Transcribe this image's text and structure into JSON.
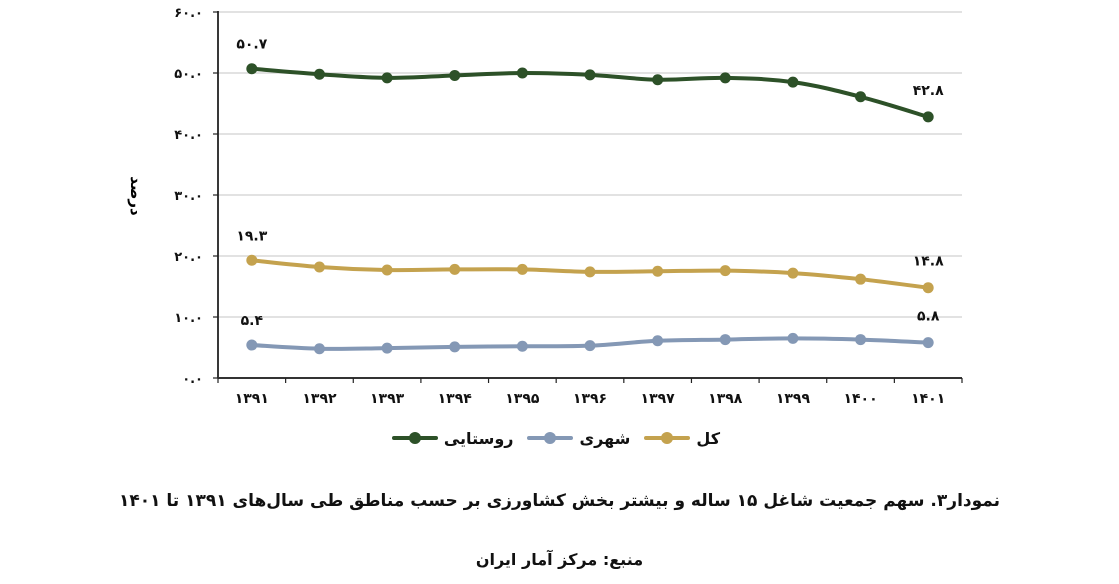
{
  "chart_data": {
    "type": "line",
    "title": "نمودار۳. سهم جمعیت شاغل ۱۵ ساله و بیشتر بخش کشاورزی بر حسب مناطق طی سال‌های ۱۳۹۱ تا ۱۴۰۱",
    "source": "منبع: مرکز آمار ایران",
    "xlabel": "",
    "ylabel": "درصد",
    "ylim": [
      0,
      60
    ],
    "yticks": [
      0,
      10,
      20,
      30,
      40,
      50,
      60
    ],
    "ytick_labels": [
      "۰.۰",
      "۱۰.۰",
      "۲۰.۰",
      "۳۰.۰",
      "۴۰.۰",
      "۵۰.۰",
      "۶۰.۰"
    ],
    "grid": true,
    "legend_position": "bottom",
    "categories": [
      "۱۳۹۱",
      "۱۳۹۲",
      "۱۳۹۳",
      "۱۳۹۴",
      "۱۳۹۵",
      "۱۳۹۶",
      "۱۳۹۷",
      "۱۳۹۸",
      "۱۳۹۹",
      "۱۴۰۰",
      "۱۴۰۱"
    ],
    "series": [
      {
        "name": "روستایی",
        "color": "#2d5128",
        "values": [
          50.7,
          49.8,
          49.2,
          49.6,
          50.0,
          49.7,
          48.9,
          49.2,
          48.5,
          46.1,
          42.8
        ],
        "labels": {
          "first": "۵۰.۷",
          "last": "۴۲.۸"
        }
      },
      {
        "name": "شهری",
        "color": "#8498b5",
        "values": [
          5.4,
          4.8,
          4.9,
          5.1,
          5.2,
          5.3,
          6.1,
          6.3,
          6.5,
          6.3,
          5.8
        ],
        "labels": {
          "first": "۵.۴",
          "last": "۵.۸"
        }
      },
      {
        "name": "کل",
        "color": "#c4a24e",
        "values": [
          19.3,
          18.2,
          17.7,
          17.8,
          17.8,
          17.4,
          17.5,
          17.6,
          17.2,
          16.2,
          14.8
        ],
        "labels": {
          "first": "۱۹.۳",
          "last": "۱۴.۸"
        }
      }
    ],
    "legend_order": [
      "کل",
      "شهری",
      "روستایی"
    ]
  },
  "legend": {
    "total": "کل",
    "urban": "شهری",
    "rural": "روستایی"
  },
  "caption": {
    "title": "نمودار۳. سهم جمعیت شاغل ۱۵ ساله و بیشتر بخش کشاورزی بر حسب مناطق طی سال‌های ۱۳۹۱ تا ۱۴۰۱",
    "source": "منبع: مرکز آمار ایران"
  }
}
